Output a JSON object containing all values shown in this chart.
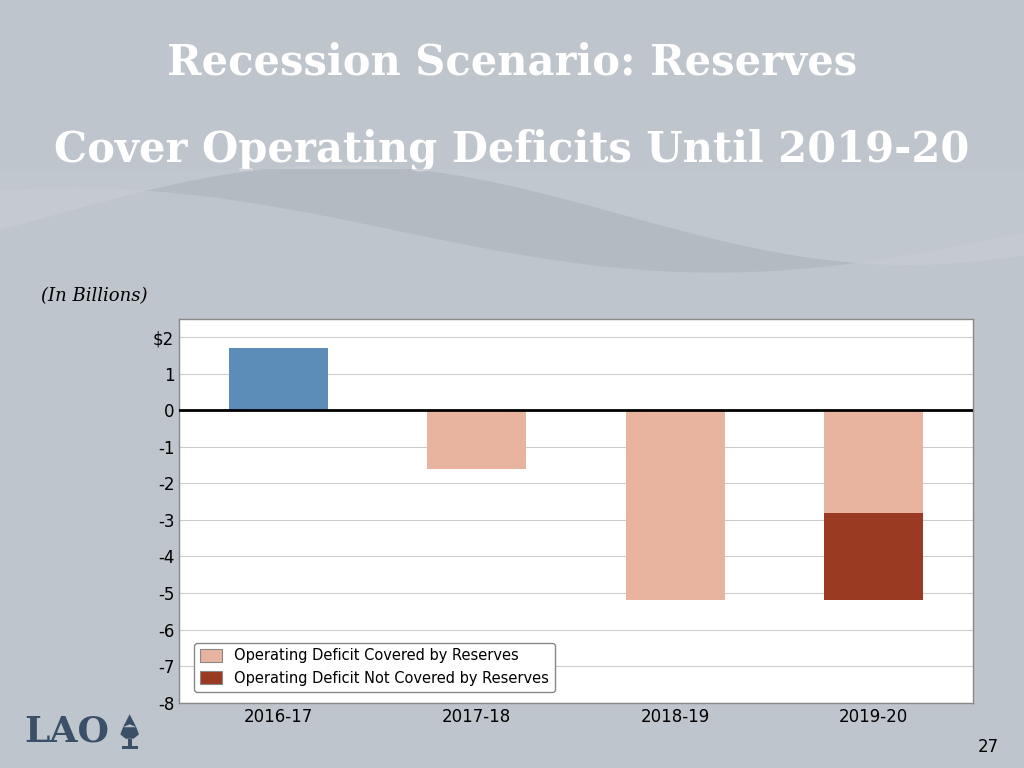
{
  "categories": [
    "2016-17",
    "2017-18",
    "2018-19",
    "2019-20"
  ],
  "reserves_bar_val": 1.7,
  "covered_by_reserves": [
    0,
    -1.6,
    -5.2,
    -2.8
  ],
  "not_covered_by_reserves": [
    0,
    0,
    0,
    -2.4
  ],
  "bar_color_reserves": "#5B8DB8",
  "bar_color_covered": "#E8B4A0",
  "bar_color_not_covered": "#9B3A22",
  "ylim": [
    -8,
    2.5
  ],
  "yticks": [
    -8,
    -7,
    -6,
    -5,
    -4,
    -3,
    -2,
    -1,
    0,
    1,
    2
  ],
  "ytick_labels": [
    "-8",
    "-7",
    "-6",
    "-5",
    "-4",
    "-3",
    "-2",
    "-1",
    "0",
    "1",
    "$2"
  ],
  "title_line1": "Recession Scenario: Reserves",
  "title_line2": "Cover Operating Deficits Until 2019-20",
  "subtitle": "(In Billions)",
  "header_bg_color": "#4D6880",
  "slide_bg_color": "#BFC5CC",
  "legend_label1": "Operating Deficit Covered by Reserves",
  "legend_label2": "Operating Deficit Not Covered by Reserves",
  "page_number": "27",
  "bar_width": 0.5
}
